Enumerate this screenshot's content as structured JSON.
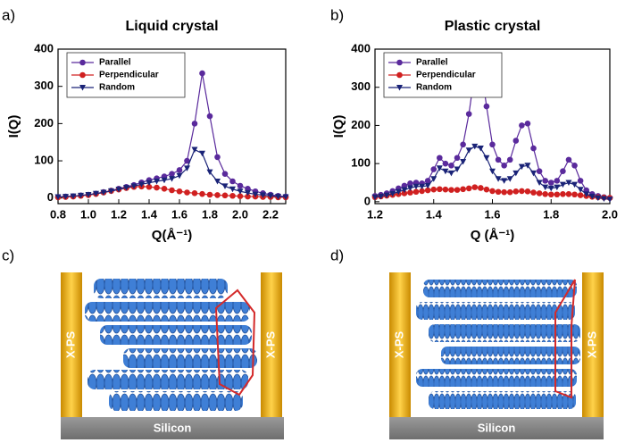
{
  "chart_data": [
    {
      "type": "line",
      "panel_label": "a)",
      "title": "Liquid crystal",
      "xlabel": "Q(Å⁻¹)",
      "ylabel": "I(Q)",
      "x": [
        0.8,
        0.85,
        0.9,
        0.95,
        1.0,
        1.05,
        1.1,
        1.15,
        1.2,
        1.25,
        1.3,
        1.35,
        1.4,
        1.45,
        1.5,
        1.55,
        1.6,
        1.65,
        1.7,
        1.75,
        1.8,
        1.85,
        1.9,
        1.95,
        2.0,
        2.05,
        2.1,
        2.15,
        2.2,
        2.25,
        2.3
      ],
      "series": [
        {
          "name": "Parallel",
          "color": "#5a2a9c",
          "marker": "circle",
          "values": [
            3,
            4,
            5,
            7,
            9,
            12,
            16,
            20,
            25,
            30,
            35,
            42,
            48,
            53,
            58,
            65,
            75,
            100,
            200,
            335,
            220,
            110,
            65,
            45,
            33,
            25,
            18,
            13,
            9,
            6,
            4
          ]
        },
        {
          "name": "Perpendicular",
          "color": "#d02020",
          "marker": "circle",
          "values": [
            2,
            3,
            4,
            6,
            8,
            11,
            15,
            19,
            23,
            27,
            30,
            31,
            30,
            28,
            25,
            21,
            18,
            15,
            13,
            11,
            9,
            8,
            7,
            6,
            5,
            4,
            4,
            3,
            3,
            2,
            2
          ]
        },
        {
          "name": "Random",
          "color": "#1a2377",
          "marker": "triangle-down",
          "values": [
            3,
            4,
            5,
            7,
            9,
            12,
            15,
            19,
            23,
            28,
            32,
            37,
            41,
            45,
            48,
            52,
            60,
            80,
            130,
            120,
            70,
            45,
            32,
            24,
            18,
            14,
            10,
            8,
            6,
            4,
            3
          ]
        }
      ],
      "xlim": [
        0.8,
        2.3
      ],
      "ylim": [
        -15,
        400
      ],
      "xticks": [
        0.8,
        {
          "value": 1,
          "label": "1.0"
        },
        1.2,
        1.4,
        1.6,
        1.8,
        {
          "value": 2,
          "label": "2.0"
        },
        2.2
      ],
      "yticks": [
        0,
        100,
        200,
        300,
        400
      ],
      "legend": "upper left"
    },
    {
      "type": "line",
      "panel_label": "b)",
      "title": "Plastic crystal",
      "xlabel": "Q (Å⁻¹)",
      "ylabel": "I(Q)",
      "x": [
        1.2,
        1.22,
        1.24,
        1.26,
        1.28,
        1.3,
        1.32,
        1.34,
        1.36,
        1.38,
        1.4,
        1.42,
        1.44,
        1.46,
        1.48,
        1.5,
        1.52,
        1.54,
        1.56,
        1.58,
        1.6,
        1.62,
        1.64,
        1.66,
        1.68,
        1.7,
        1.72,
        1.74,
        1.76,
        1.78,
        1.8,
        1.82,
        1.84,
        1.86,
        1.88,
        1.9,
        1.92,
        1.94,
        1.96,
        1.98,
        2.0
      ],
      "series": [
        {
          "name": "Parallel",
          "color": "#5a2a9c",
          "marker": "circle",
          "values": [
            15,
            18,
            22,
            28,
            35,
            42,
            48,
            50,
            48,
            55,
            85,
            115,
            100,
            95,
            115,
            150,
            230,
            340,
            360,
            250,
            150,
            110,
            95,
            110,
            160,
            200,
            205,
            140,
            80,
            55,
            50,
            55,
            80,
            110,
            95,
            55,
            30,
            20,
            15,
            12,
            10
          ]
        },
        {
          "name": "Perpendicular",
          "color": "#d02020",
          "marker": "circle",
          "values": [
            12,
            14,
            16,
            18,
            20,
            22,
            24,
            26,
            28,
            30,
            32,
            33,
            32,
            31,
            31,
            33,
            35,
            38,
            36,
            32,
            28,
            26,
            25,
            25,
            27,
            28,
            27,
            24,
            22,
            20,
            19,
            19,
            20,
            20,
            19,
            17,
            15,
            13,
            12,
            11,
            10
          ]
        },
        {
          "name": "Random",
          "color": "#1a2377",
          "marker": "triangle-down",
          "values": [
            12,
            14,
            17,
            21,
            26,
            31,
            36,
            40,
            40,
            42,
            60,
            88,
            80,
            75,
            85,
            105,
            135,
            145,
            140,
            115,
            80,
            60,
            55,
            60,
            75,
            92,
            95,
            75,
            50,
            38,
            35,
            38,
            45,
            50,
            45,
            32,
            20,
            14,
            10,
            8,
            6
          ]
        }
      ],
      "xlim": [
        1.2,
        2.0
      ],
      "ylim": [
        -5,
        400
      ],
      "xticks": [
        1.2,
        1.4,
        1.6,
        1.8,
        {
          "value": 2,
          "label": "2.0"
        }
      ],
      "yticks": [
        0,
        100,
        200,
        300,
        400
      ],
      "legend": "upper left"
    }
  ],
  "diagrams": [
    {
      "panel_label": "c)",
      "wall_label": "X-PS",
      "substrate_label": "Silicon"
    },
    {
      "panel_label": "d)",
      "wall_label": "X-PS",
      "substrate_label": "Silicon"
    }
  ]
}
